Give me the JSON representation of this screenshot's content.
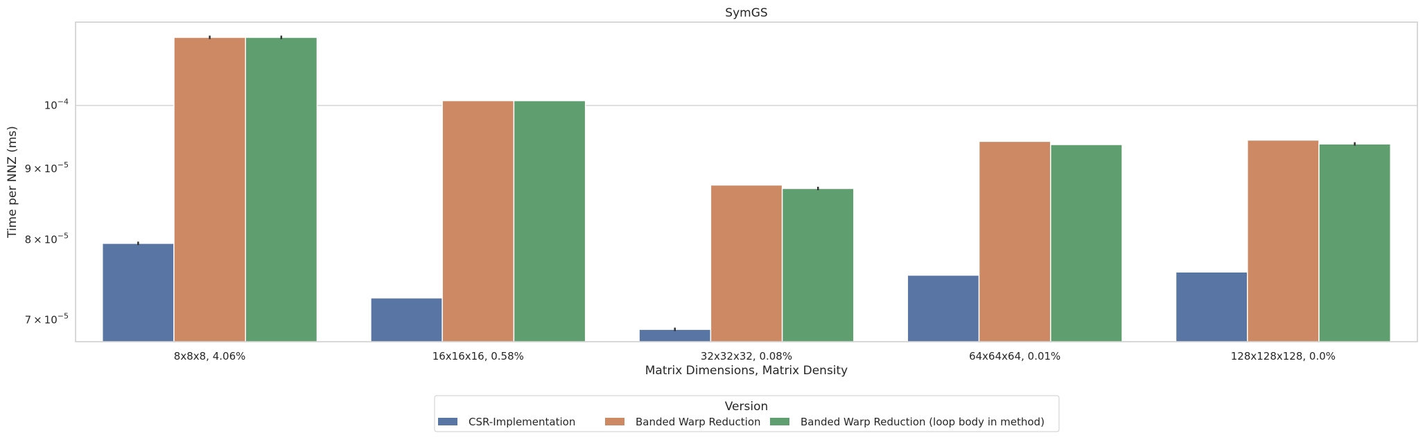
{
  "chart_data": {
    "type": "bar",
    "title": "SymGS",
    "xlabel": "Matrix Dimensions, Matrix Density",
    "ylabel": "Time per NNZ (ms)",
    "yscale": "log",
    "ylim": [
      6.75e-05,
      0.000112
    ],
    "grid": true,
    "categories": [
      "8x8x8, 4.06%",
      "16x16x16, 0.58%",
      "32x32x32, 0.08%",
      "64x64x64, 0.01%",
      "128x128x128, 0.0%"
    ],
    "yticks": [
      {
        "value": 7e-05,
        "mantissa": "7",
        "exp": "−5"
      },
      {
        "value": 8e-05,
        "mantissa": "8",
        "exp": "−5"
      },
      {
        "value": 9e-05,
        "mantissa": "9",
        "exp": "−5"
      },
      {
        "value": 0.0001,
        "mantissa": "",
        "exp": "−4"
      }
    ],
    "series": [
      {
        "name": "CSR-Implementation",
        "color": "#5875a4",
        "values": [
          7.95e-05,
          7.26e-05,
          6.89e-05,
          7.54e-05,
          7.58e-05
        ],
        "err": [
          true,
          false,
          true,
          false,
          false
        ]
      },
      {
        "name": "Banded Warp Reduction",
        "color": "#cc8963",
        "values": [
          0.000112,
          0.0001008,
          8.76e-05,
          9.42e-05,
          9.44e-05
        ],
        "err": [
          true,
          false,
          false,
          false,
          false
        ]
      },
      {
        "name": "Banded Warp Reduction (loop body in method)",
        "color": "#5f9e6e",
        "values": [
          0.000112,
          0.0001008,
          8.71e-05,
          9.37e-05,
          9.38e-05
        ],
        "err": [
          true,
          false,
          true,
          false,
          true
        ]
      }
    ],
    "legend": {
      "title": "Version",
      "placement": "bottom-center"
    }
  }
}
